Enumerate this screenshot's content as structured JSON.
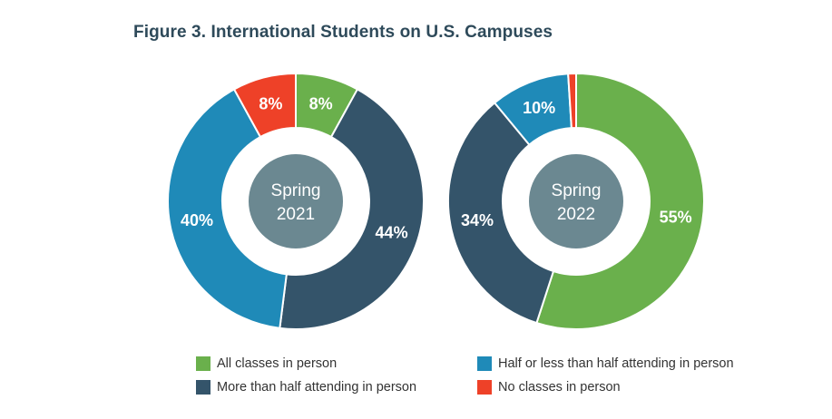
{
  "title": "Figure 3. International Students on U.S. Campuses",
  "colors": {
    "all_in_person": "#6ab04c",
    "more_than_half": "#34546a",
    "half_or_less": "#1f8ab8",
    "no_classes": "#ee4128",
    "center": "#6b8891"
  },
  "chart_data": [
    {
      "type": "pie",
      "subtype": "donut",
      "center_label": [
        "Spring",
        "2021"
      ],
      "slices": [
        {
          "name": "All classes in person",
          "value": 8,
          "label": "8%",
          "color": "#6ab04c"
        },
        {
          "name": "More than half attending in person",
          "value": 44,
          "label": "44%",
          "color": "#34546a"
        },
        {
          "name": "Half or less than half attending in person",
          "value": 40,
          "label": "40%",
          "color": "#1f8ab8"
        },
        {
          "name": "No classes in person",
          "value": 8,
          "label": "8%",
          "color": "#ee4128"
        }
      ]
    },
    {
      "type": "pie",
      "subtype": "donut",
      "center_label": [
        "Spring",
        "2022"
      ],
      "slices": [
        {
          "name": "All classes in person",
          "value": 55,
          "label": "55%",
          "color": "#6ab04c"
        },
        {
          "name": "More than half attending in person",
          "value": 34,
          "label": "34%",
          "color": "#34546a"
        },
        {
          "name": "Half or less than half attending in person",
          "value": 10,
          "label": "10%",
          "color": "#1f8ab8"
        },
        {
          "name": "No classes in person",
          "value": 1,
          "label": "",
          "color": "#ee4128"
        }
      ]
    }
  ],
  "legend": [
    {
      "label": "All classes in person",
      "color": "#6ab04c"
    },
    {
      "label": "Half or less than half attending in person",
      "color": "#1f8ab8"
    },
    {
      "label": "More than half attending in person",
      "color": "#34546a"
    },
    {
      "label": "No classes in person",
      "color": "#ee4128"
    }
  ]
}
